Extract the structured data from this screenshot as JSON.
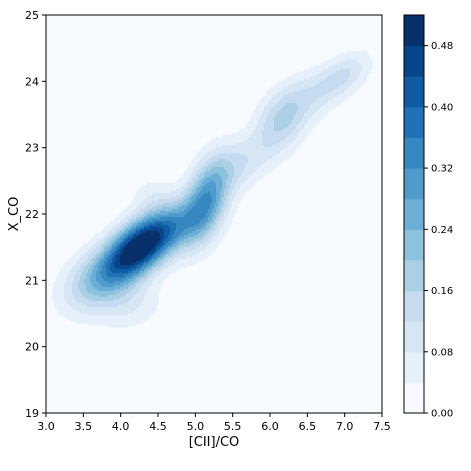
{
  "chart_data": {
    "type": "heatmap",
    "subtype": "kde-filled-contour",
    "title": "",
    "xlabel": "[CII]/CO",
    "ylabel": "X_CO",
    "xlim": [
      3.0,
      7.5
    ],
    "ylim": [
      19,
      25
    ],
    "x_ticks": [
      "3.0",
      "3.5",
      "4.0",
      "4.5",
      "5.0",
      "5.5",
      "6.0",
      "6.5",
      "7.0",
      "7.5"
    ],
    "y_ticks": [
      "19",
      "20",
      "21",
      "22",
      "23",
      "24",
      "25"
    ],
    "grid": false,
    "colormap": "Blues",
    "colorbar": {
      "range": [
        0.0,
        0.52
      ],
      "levels": 13,
      "ticks": [
        "0.00",
        "0.08",
        "0.16",
        "0.24",
        "0.32",
        "0.40",
        "0.48"
      ]
    },
    "density_components": [
      {
        "x": 4.25,
        "y": 21.5,
        "sx": 0.33,
        "sy": 0.35,
        "rho": 0.55,
        "weight": 0.52
      },
      {
        "x": 3.7,
        "y": 21.0,
        "sx": 0.35,
        "sy": 0.35,
        "rho": 0.35,
        "weight": 0.18
      },
      {
        "x": 5.15,
        "y": 22.2,
        "sx": 0.22,
        "sy": 0.45,
        "rho": 0.4,
        "weight": 0.28
      },
      {
        "x": 4.75,
        "y": 21.8,
        "sx": 0.3,
        "sy": 0.3,
        "rho": 0.4,
        "weight": 0.14
      },
      {
        "x": 5.6,
        "y": 22.75,
        "sx": 0.3,
        "sy": 0.3,
        "rho": 0.4,
        "weight": 0.1
      },
      {
        "x": 6.15,
        "y": 23.4,
        "sx": 0.25,
        "sy": 0.35,
        "rho": 0.3,
        "weight": 0.15
      },
      {
        "x": 6.55,
        "y": 23.8,
        "sx": 0.3,
        "sy": 0.3,
        "rho": 0.4,
        "weight": 0.08
      },
      {
        "x": 7.0,
        "y": 24.1,
        "sx": 0.25,
        "sy": 0.25,
        "rho": 0.5,
        "weight": 0.11
      },
      {
        "x": 4.15,
        "y": 20.6,
        "sx": 0.3,
        "sy": 0.25,
        "rho": 0.2,
        "weight": 0.07
      },
      {
        "x": 4.4,
        "y": 22.3,
        "sx": 0.2,
        "sy": 0.2,
        "rho": 0.0,
        "weight": 0.05
      }
    ]
  }
}
